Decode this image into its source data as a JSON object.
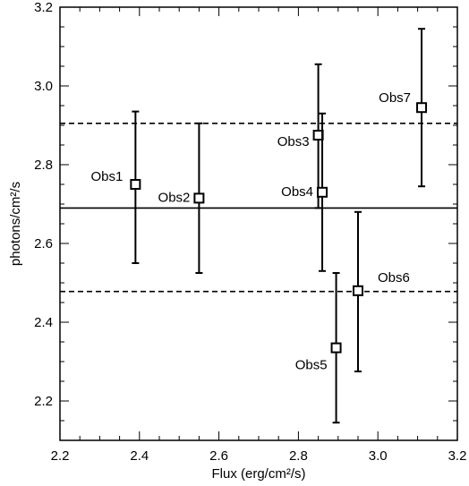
{
  "chart_data": {
    "type": "scatter",
    "xlabel": "Flux (erg/cm²/s)",
    "ylabel": "photons/cm²/s",
    "xlim": [
      2.2,
      3.2
    ],
    "ylim": [
      2.1,
      3.2
    ],
    "xticks": [
      "2.2",
      "2.4",
      "2.6",
      "2.8",
      "3.0",
      "3.2"
    ],
    "yticks": [
      "2.2",
      "2.4",
      "2.6",
      "2.8",
      "3.0",
      "3.2"
    ],
    "points": [
      {
        "label": "Obs1",
        "x": 2.39,
        "y": 2.75,
        "ylow": 2.55,
        "yhigh": 2.935
      },
      {
        "label": "Obs2",
        "x": 2.55,
        "y": 2.715,
        "ylow": 2.525,
        "yhigh": 2.905
      },
      {
        "label": "Obs3",
        "x": 2.85,
        "y": 2.875,
        "ylow": 2.69,
        "yhigh": 3.055
      },
      {
        "label": "Obs4",
        "x": 2.86,
        "y": 2.73,
        "ylow": 2.53,
        "yhigh": 2.93
      },
      {
        "label": "Obs5",
        "x": 2.895,
        "y": 2.335,
        "ylow": 2.145,
        "yhigh": 2.525
      },
      {
        "label": "Obs6",
        "x": 2.95,
        "y": 2.48,
        "ylow": 2.275,
        "yhigh": 2.68
      },
      {
        "label": "Obs7",
        "x": 3.11,
        "y": 2.945,
        "ylow": 2.745,
        "yhigh": 3.145
      }
    ],
    "hlines": [
      {
        "y": 2.905,
        "style": "dashed"
      },
      {
        "y": 2.69,
        "style": "solid"
      },
      {
        "y": 2.478,
        "style": "dashed"
      }
    ]
  }
}
